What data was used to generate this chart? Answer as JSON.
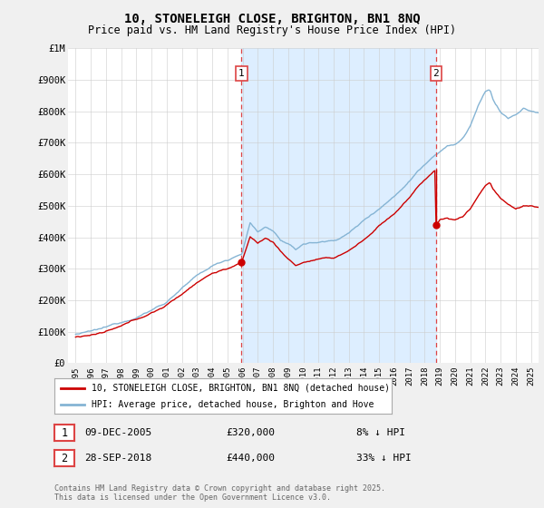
{
  "title": "10, STONELEIGH CLOSE, BRIGHTON, BN1 8NQ",
  "subtitle": "Price paid vs. HM Land Registry's House Price Index (HPI)",
  "legend_line1": "10, STONELEIGH CLOSE, BRIGHTON, BN1 8NQ (detached house)",
  "legend_line2": "HPI: Average price, detached house, Brighton and Hove",
  "sale1_date": "09-DEC-2005",
  "sale1_price": "£320,000",
  "sale1_hpi": "8% ↓ HPI",
  "sale1_year": 2005.93,
  "sale1_value": 320000,
  "sale2_date": "28-SEP-2018",
  "sale2_price": "£440,000",
  "sale2_hpi": "33% ↓ HPI",
  "sale2_year": 2018.75,
  "sale2_value": 440000,
  "footer": "Contains HM Land Registry data © Crown copyright and database right 2025.\nThis data is licensed under the Open Government Licence v3.0.",
  "line_color_red": "#cc0000",
  "line_color_blue": "#85b4d4",
  "shade_color": "#ddeeff",
  "vline_color": "#dd4444",
  "background_color": "#f0f0f0",
  "plot_bg_color": "#ffffff",
  "ylim": [
    0,
    1000000
  ],
  "xlim_start": 1994.5,
  "xlim_end": 2025.5
}
